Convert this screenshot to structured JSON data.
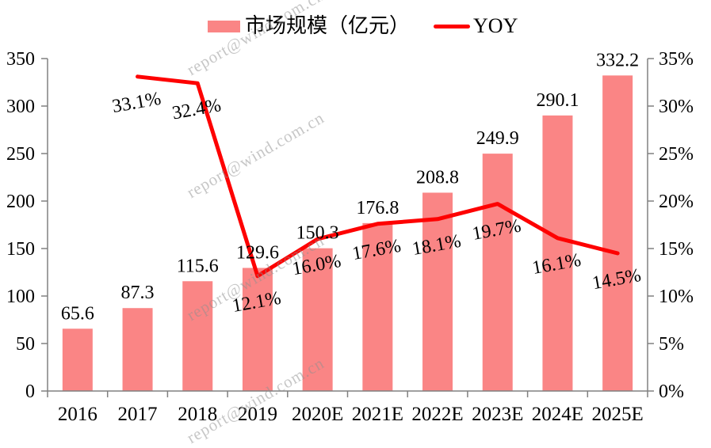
{
  "watermark": {
    "text": "report@wind.com.cn"
  },
  "legend": [
    {
      "label": "市场规模（亿元）",
      "type": "bar-swatch"
    },
    {
      "label": "YOY",
      "type": "line-swatch"
    }
  ],
  "colors": {
    "bar": "#FA8585",
    "line": "#FE0000",
    "axis": "#808080",
    "text": "#000000",
    "watermark": "#8F8F8F"
  },
  "chart_data": {
    "type": "combo-bar-line",
    "title": "",
    "legend_position": "top",
    "grid": false,
    "categories": [
      "2016",
      "2017",
      "2018",
      "2019",
      "2020E",
      "2021E",
      "2022E",
      "2023E",
      "2024E",
      "2025E"
    ],
    "series": [
      {
        "name": "市场规模（亿元）",
        "chart": "bar",
        "axis": "left",
        "color": "#FA8585",
        "values": [
          65.6,
          87.3,
          115.6,
          129.6,
          150.3,
          176.8,
          208.8,
          249.9,
          290.1,
          332.2
        ],
        "labels": [
          "65.6",
          "87.3",
          "115.6",
          "129.6",
          "150.3",
          "176.8",
          "208.8",
          "249.9",
          "290.1",
          "332.2"
        ]
      },
      {
        "name": "YOY",
        "chart": "line",
        "axis": "right",
        "color": "#FE0000",
        "values": [
          null,
          33.1,
          32.4,
          12.1,
          16.0,
          17.6,
          18.1,
          19.7,
          16.1,
          14.5
        ],
        "labels": [
          "",
          "33.1%",
          "32.4%",
          "12.1%",
          "16.0%",
          "17.6%",
          "18.1%",
          "19.7%",
          "16.1%",
          "14.5%"
        ]
      }
    ],
    "left_axis": {
      "min": 0,
      "max": 350,
      "step": 50,
      "tick_labels": [
        "0",
        "50",
        "100",
        "150",
        "200",
        "250",
        "300",
        "350"
      ]
    },
    "right_axis": {
      "min": 0,
      "max": 35,
      "step": 5,
      "tick_labels": [
        "0%",
        "5%",
        "10%",
        "15%",
        "20%",
        "25%",
        "30%",
        "35%"
      ]
    },
    "x_axis": {
      "tick_labels": [
        "2016",
        "2017",
        "2018",
        "2019",
        "2020E",
        "2021E",
        "2022E",
        "2023E",
        "2024E",
        "2025E"
      ]
    }
  }
}
